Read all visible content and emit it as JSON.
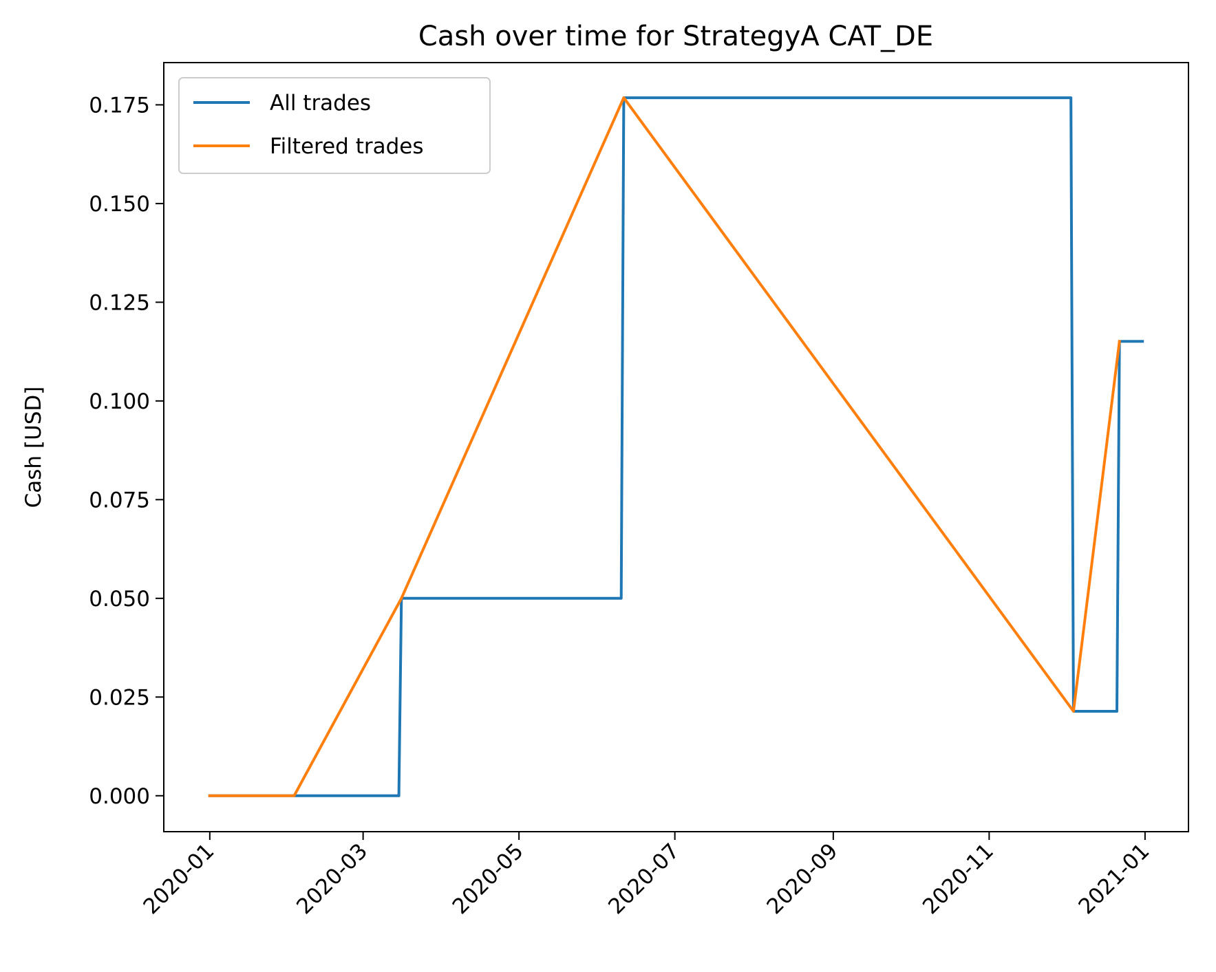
{
  "chart_data": {
    "type": "line",
    "title": "Cash over time for StrategyA CAT_DE",
    "xlabel": "",
    "ylabel": "Cash [USD]",
    "x_type": "date",
    "xlim": [
      "2019-12-14",
      "2021-01-18"
    ],
    "ylim": [
      -0.0091,
      0.1857
    ],
    "x_ticks": [
      "2020-01",
      "2020-03",
      "2020-05",
      "2020-07",
      "2020-09",
      "2020-11",
      "2021-01"
    ],
    "x_tick_dates": [
      "2020-01-01",
      "2020-03-01",
      "2020-05-01",
      "2020-07-01",
      "2020-09-01",
      "2020-11-01",
      "2021-01-01"
    ],
    "y_ticks": [
      "0.000",
      "0.025",
      "0.050",
      "0.075",
      "0.100",
      "0.125",
      "0.150",
      "0.175"
    ],
    "y_tick_values": [
      0,
      0.025,
      0.05,
      0.075,
      0.1,
      0.125,
      0.15,
      0.175
    ],
    "grid": false,
    "legend_position": "top-left",
    "series": [
      {
        "name": "All trades",
        "color": "#1f77b4",
        "points": [
          [
            "2020-01-01",
            0.0
          ],
          [
            "2020-03-15",
            0.0
          ],
          [
            "2020-03-16",
            0.05
          ],
          [
            "2020-06-10",
            0.05
          ],
          [
            "2020-06-11",
            0.1768
          ],
          [
            "2020-12-03",
            0.1768
          ],
          [
            "2020-12-04",
            0.0214
          ],
          [
            "2020-12-21",
            0.0214
          ],
          [
            "2020-12-22",
            0.1151
          ],
          [
            "2020-12-31",
            0.1151
          ]
        ]
      },
      {
        "name": "Filtered trades",
        "color": "#ff7f0e",
        "points": [
          [
            "2020-01-01",
            0.0
          ],
          [
            "2020-02-03",
            0.0
          ],
          [
            "2020-03-16",
            0.05
          ],
          [
            "2020-06-11",
            0.1768
          ],
          [
            "2020-12-04",
            0.0214
          ],
          [
            "2020-12-22",
            0.1151
          ]
        ]
      }
    ]
  }
}
